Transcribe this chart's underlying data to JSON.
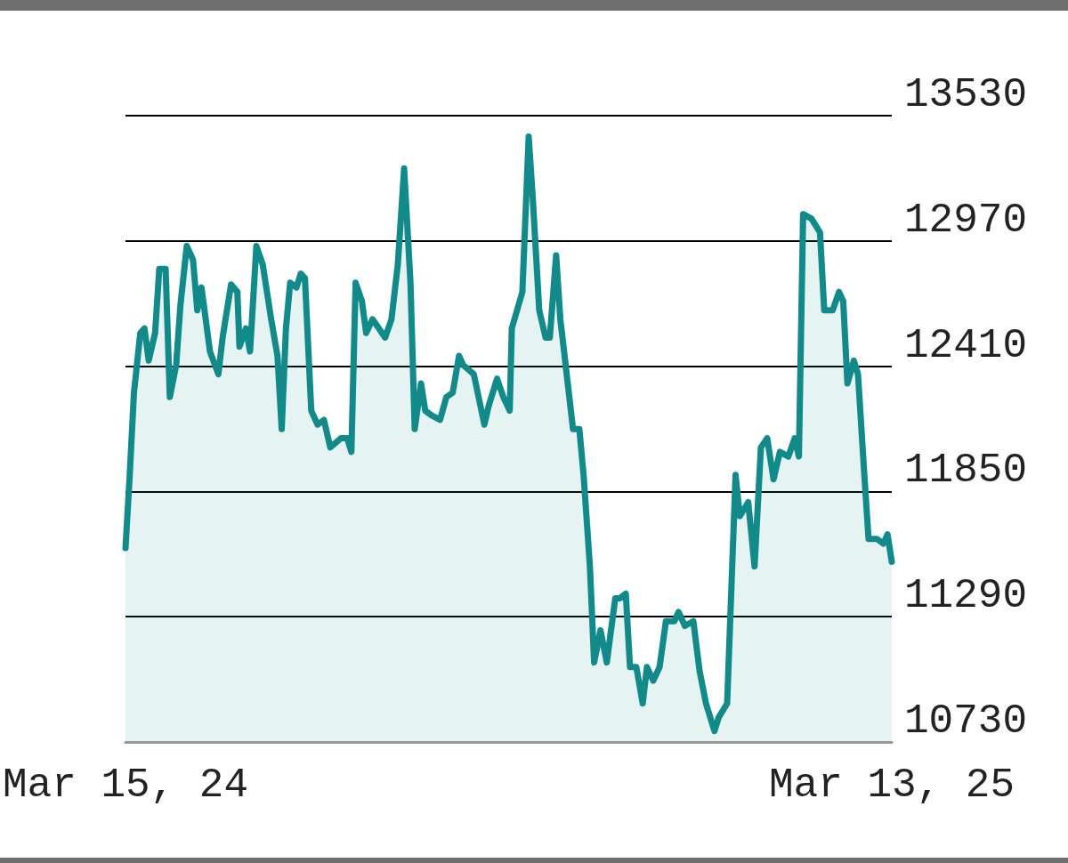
{
  "chart_data": {
    "type": "area",
    "color": "#138a8a",
    "x": [
      "2024-03-15",
      "2024-03-17",
      "2024-03-19",
      "2024-03-22",
      "2024-03-24",
      "2024-03-26",
      "2024-03-29",
      "2024-03-31",
      "2024-04-03",
      "2024-04-05",
      "2024-04-08",
      "2024-04-10",
      "2024-04-13",
      "2024-04-16",
      "2024-04-18",
      "2024-04-20",
      "2024-04-24",
      "2024-04-28",
      "2024-04-30",
      "2024-05-04",
      "2024-05-07",
      "2024-05-08",
      "2024-05-11",
      "2024-05-13",
      "2024-05-16",
      "2024-05-19",
      "2024-05-23",
      "2024-05-26",
      "2024-05-28",
      "2024-05-30",
      "2024-06-01",
      "2024-06-04",
      "2024-06-06",
      "2024-06-08",
      "2024-06-11",
      "2024-06-14",
      "2024-06-17",
      "2024-06-20",
      "2024-06-25",
      "2024-06-28",
      "2024-06-30",
      "2024-07-02",
      "2024-07-05",
      "2024-07-07",
      "2024-07-10",
      "2024-07-13",
      "2024-07-16",
      "2024-07-19",
      "2024-07-22",
      "2024-07-25",
      "2024-07-28",
      "2024-07-30",
      "2024-08-02",
      "2024-08-04",
      "2024-08-07",
      "2024-08-11",
      "2024-08-14",
      "2024-08-17",
      "2024-08-20",
      "2024-08-22",
      "2024-08-27",
      "2024-09-01",
      "2024-09-03",
      "2024-09-07",
      "2024-09-10",
      "2024-09-13",
      "2024-09-14",
      "2024-09-19",
      "2024-09-22",
      "2024-09-24",
      "2024-09-27",
      "2024-09-30",
      "2024-10-02",
      "2024-10-05",
      "2024-10-07",
      "2024-10-11",
      "2024-10-13",
      "2024-10-16",
      "2024-10-18",
      "2024-10-21",
      "2024-10-23",
      "2024-10-26",
      "2024-10-29",
      "2024-11-02",
      "2024-11-04",
      "2024-11-07",
      "2024-11-09",
      "2024-11-12",
      "2024-11-15",
      "2024-11-17",
      "2024-11-20",
      "2024-11-23",
      "2024-11-26",
      "2024-11-30",
      "2024-12-02",
      "2024-12-05",
      "2024-12-09",
      "2024-12-12",
      "2024-12-15",
      "2024-12-19",
      "2024-12-21",
      "2024-12-25",
      "2024-12-29",
      "2024-12-31",
      "2025-01-04",
      "2025-01-07",
      "2025-01-10",
      "2025-01-13",
      "2025-01-16",
      "2025-01-19",
      "2025-01-23",
      "2025-01-26",
      "2025-01-28",
      "2025-01-30",
      "2025-02-03",
      "2025-02-07",
      "2025-02-09",
      "2025-02-13",
      "2025-02-16",
      "2025-02-18",
      "2025-02-20",
      "2025-02-23",
      "2025-02-25",
      "2025-02-28",
      "2025-03-02",
      "2025-03-06",
      "2025-03-09",
      "2025-03-11",
      "2025-03-13"
    ],
    "values": [
      11597,
      11924,
      12292,
      12558,
      12579,
      12435,
      12558,
      12845,
      12845,
      12272,
      12415,
      12681,
      12947,
      12886,
      12660,
      12762,
      12476,
      12374,
      12538,
      12775,
      12742,
      12497,
      12579,
      12476,
      12947,
      12865,
      12620,
      12456,
      12129,
      12579,
      12783,
      12762,
      12824,
      12804,
      12211,
      12149,
      12170,
      12047,
      12088,
      12088,
      12027,
      12783,
      12701,
      12558,
      12620,
      12579,
      12538,
      12620,
      12865,
      13294,
      12783,
      12129,
      12333,
      12211,
      12190,
      12170,
      12272,
      12292,
      12456,
      12415,
      12374,
      12149,
      12231,
      12354,
      12272,
      12211,
      12579,
      12742,
      13437,
      13151,
      12660,
      12538,
      12538,
      12906,
      12620,
      12292,
      12129,
      12129,
      11924,
      11515,
      11086,
      11229,
      11086,
      11372,
      11372,
      11393,
      11065,
      11065,
      10902,
      11065,
      11004,
      11065,
      11270,
      11270,
      11311,
      11249,
      11270,
      11045,
      10902,
      10779,
      10840,
      10902,
      11924,
      11740,
      11802,
      11515,
      12047,
      12088,
      11904,
      12027,
      12006,
      12088,
      12006,
      13090,
      13069,
      13008,
      12660,
      12660,
      12742,
      12701,
      12333,
      12435,
      12374,
      11924,
      11638,
      11638,
      11617,
      11658,
      11536
    ],
    "xlim": [
      "2024-03-15",
      "2025-03-13"
    ],
    "xticks": [
      {
        "value": "2024-03-15",
        "label": "Mar 15, 24"
      },
      {
        "value": "2025-03-13",
        "label": "Mar 13, 25"
      }
    ],
    "ylim": [
      10730,
      13530
    ],
    "yticks": [
      10730,
      11290,
      11850,
      12410,
      12970,
      13530
    ],
    "grid": "y",
    "marker": "none",
    "line_style": "solid"
  }
}
